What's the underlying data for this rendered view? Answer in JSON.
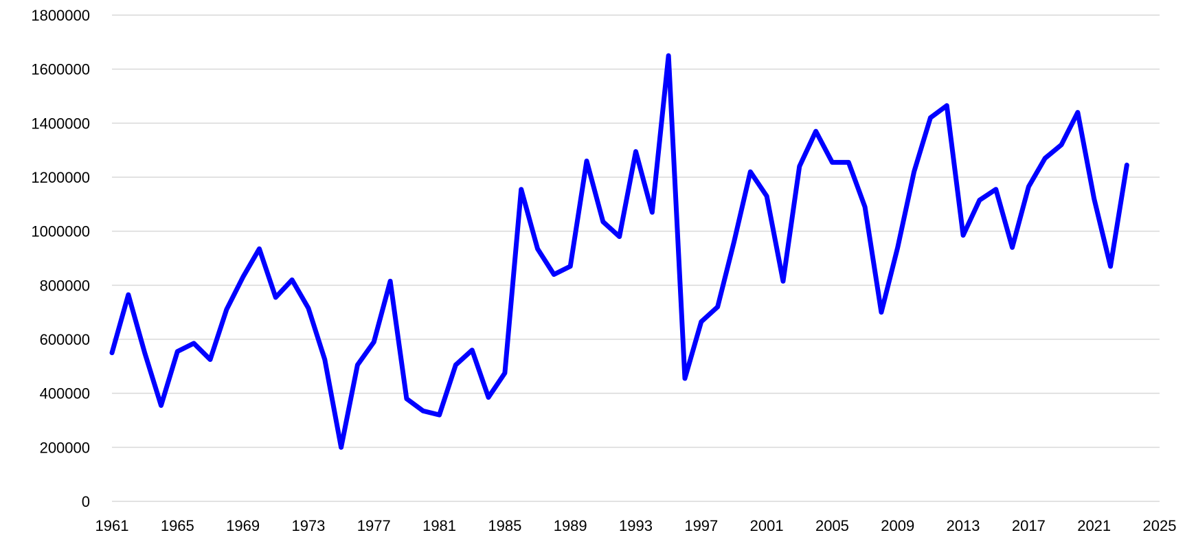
{
  "chart_data": {
    "type": "line",
    "title": "",
    "xlabel": "",
    "ylabel": "",
    "xlim": [
      1961,
      2025
    ],
    "ylim": [
      0,
      1800000
    ],
    "x_ticks": [
      1961,
      1965,
      1969,
      1973,
      1977,
      1981,
      1985,
      1989,
      1993,
      1997,
      2001,
      2005,
      2009,
      2013,
      2017,
      2021,
      2025
    ],
    "y_ticks": [
      0,
      200000,
      400000,
      600000,
      800000,
      1000000,
      1200000,
      1400000,
      1600000,
      1800000
    ],
    "grid": "horizontal",
    "legend": "none",
    "colors": {
      "series": "#0000ff",
      "grid": "#d9d9d9",
      "text": "#000000"
    },
    "series": [
      {
        "x": [
          1961,
          1962,
          1963,
          1964,
          1965,
          1966,
          1967,
          1968,
          1969,
          1970,
          1971,
          1972,
          1973,
          1974,
          1975,
          1976,
          1977,
          1978,
          1979,
          1980,
          1981,
          1982,
          1983,
          1984,
          1985,
          1986,
          1987,
          1988,
          1989,
          1990,
          1991,
          1992,
          1993,
          1994,
          1995,
          1996,
          1997,
          1998,
          1999,
          2000,
          2001,
          2002,
          2003,
          2004,
          2005,
          2006,
          2007,
          2008,
          2009,
          2010,
          2011,
          2012,
          2013,
          2014,
          2015,
          2016,
          2017,
          2018,
          2019,
          2020,
          2021,
          2022,
          2023
        ],
        "values": [
          550000,
          765000,
          550000,
          355000,
          555000,
          585000,
          525000,
          710000,
          830000,
          935000,
          755000,
          820000,
          715000,
          525000,
          200000,
          505000,
          590000,
          815000,
          380000,
          335000,
          320000,
          505000,
          560000,
          385000,
          475000,
          1155000,
          935000,
          840000,
          870000,
          1260000,
          1035000,
          980000,
          1295000,
          1070000,
          1650000,
          455000,
          665000,
          720000,
          960000,
          1220000,
          1130000,
          815000,
          1240000,
          1370000,
          1255000,
          1255000,
          1090000,
          700000,
          940000,
          1220000,
          1420000,
          1465000,
          985000,
          1115000,
          1155000,
          940000,
          1165000,
          1270000,
          1320000,
          1440000,
          1120000,
          870000,
          1245000
        ]
      }
    ]
  }
}
